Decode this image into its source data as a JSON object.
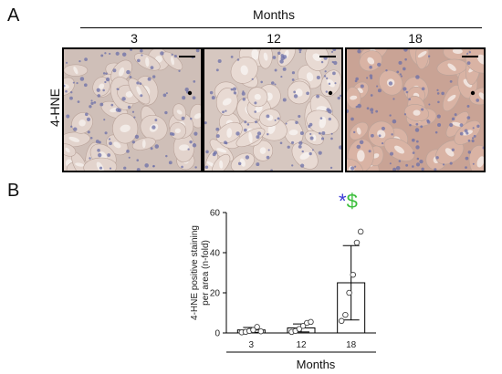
{
  "figure": {
    "panel_a_letter": "A",
    "panel_b_letter": "B",
    "top_header": "Months",
    "row_label": "4-HNE",
    "columns": [
      {
        "label": "3",
        "tint": "#cfbfb8",
        "cell": "#e2d3cc",
        "lumen": "#f2ebe7"
      },
      {
        "label": "12",
        "tint": "#d6c7c0",
        "cell": "#e8dad3",
        "lumen": "#f5efec"
      },
      {
        "label": "18",
        "tint": "#c9a395",
        "cell": "#d9b3a4",
        "lumen": "#f0e2dc"
      }
    ],
    "significance": {
      "star": "*",
      "star_color": "#3a3ad8",
      "dollar": "$",
      "dollar_color": "#3cbf3c"
    }
  },
  "chart_data": {
    "type": "bar",
    "categories": [
      "3",
      "12",
      "18"
    ],
    "values": [
      1.5,
      2.5,
      25
    ],
    "errors": [
      1.2,
      2.0,
      18.5
    ],
    "points": [
      [
        0.3,
        0.5,
        1.0,
        1.5,
        3.0,
        0.8
      ],
      [
        0.5,
        1.0,
        2.0,
        3.5,
        5.0,
        5.5
      ],
      [
        6.0,
        9.0,
        20.0,
        29.0,
        45.0,
        50.5
      ]
    ],
    "ylabel": "4-HNE positive staining per area (n-fold)",
    "xlabel": "Months",
    "ylim": [
      0,
      60
    ],
    "yticks": [
      "0",
      "20",
      "40",
      "60"
    ],
    "grid": false
  }
}
